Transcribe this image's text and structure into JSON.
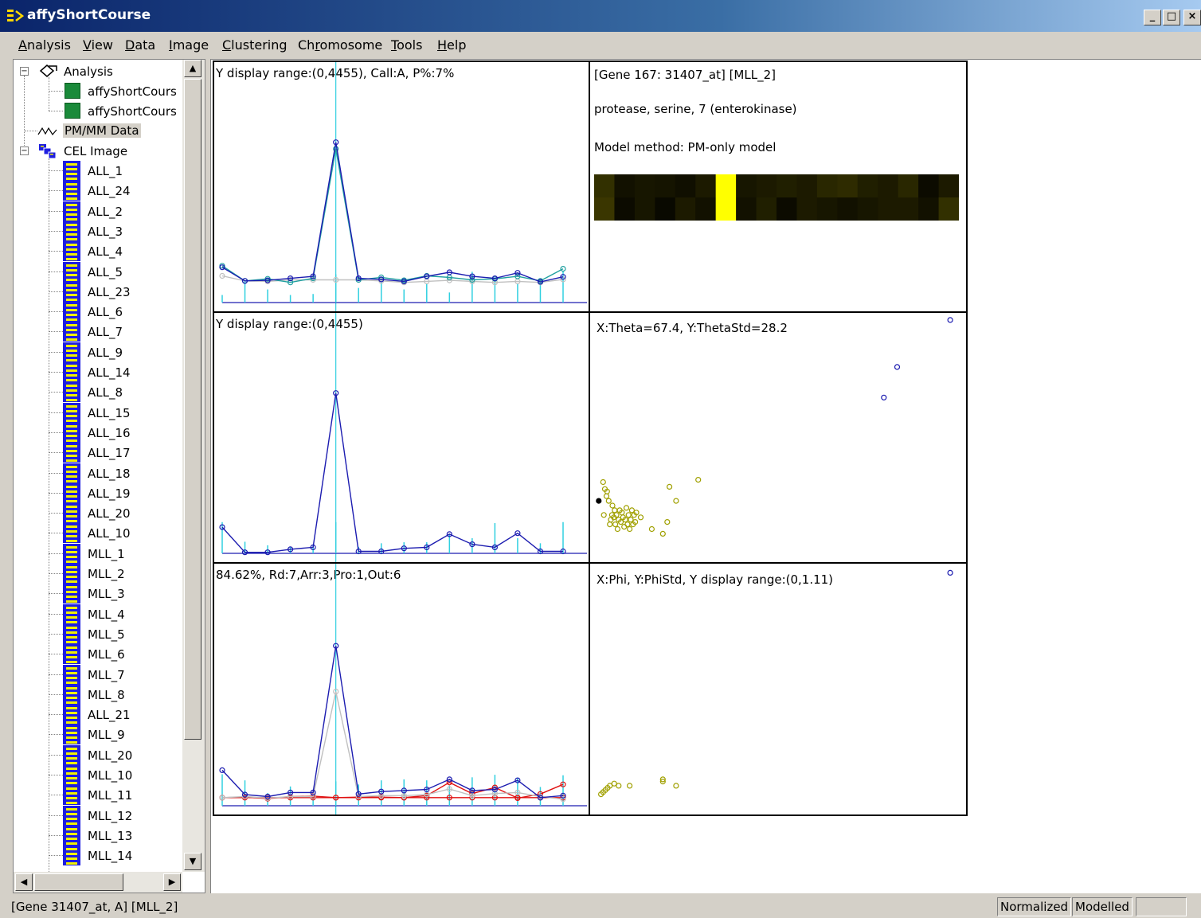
{
  "window": {
    "title": "affyShortCourse",
    "minimize": "_",
    "maximize": "□",
    "close": "×"
  },
  "menu": [
    {
      "key": "A",
      "rest": "nalysis"
    },
    {
      "key": "V",
      "rest": "iew"
    },
    {
      "key": "D",
      "rest": "ata"
    },
    {
      "key": "I",
      "rest": "mage"
    },
    {
      "key": "C",
      "rest": "lustering"
    },
    {
      "pre": "Ch",
      "key": "r",
      "rest": "omosome"
    },
    {
      "key": "T",
      "rest": "ools"
    },
    {
      "key": "H",
      "rest": "elp"
    }
  ],
  "tree": {
    "analysis_label": "Analysis",
    "analysis_children": [
      "affyShortCours",
      "affyShortCours"
    ],
    "pmmm_label": "PM/MM Data",
    "cel_label": "CEL Image",
    "cel_children": [
      "ALL_1",
      "ALL_24",
      "ALL_2",
      "ALL_3",
      "ALL_4",
      "ALL_5",
      "ALL_23",
      "ALL_6",
      "ALL_7",
      "ALL_9",
      "ALL_14",
      "ALL_8",
      "ALL_15",
      "ALL_16",
      "ALL_17",
      "ALL_18",
      "ALL_19",
      "ALL_20",
      "ALL_10",
      "MLL_1",
      "MLL_2",
      "MLL_3",
      "MLL_4",
      "MLL_5",
      "MLL_6",
      "MLL_7",
      "MLL_8",
      "ALL_21",
      "MLL_9",
      "MLL_20",
      "MLL_10",
      "MLL_11",
      "MLL_12",
      "MLL_13",
      "MLL_14"
    ]
  },
  "panels": {
    "pmmm_top": {
      "label": "Y display range:(0,4455), Call:A, P%:7%"
    },
    "info": {
      "gene": "[Gene 167: 31407_at] [MLL_2]",
      "desc": "protease, serine, 7 (enterokinase)",
      "model": "Model method: PM-only model"
    },
    "pmmm_mid": {
      "label": "Y display range:(0,4455)"
    },
    "theta": {
      "label": "X:Theta=67.4, Y:ThetaStd=28.2"
    },
    "pmmm_bot": {
      "label": "84.62%, Rd:7,Arr:3,Pro:1,Out:6"
    },
    "phi": {
      "label": "X:Phi, Y:PhiStd, Y display range:(0,1.11)"
    }
  },
  "status": {
    "text": "[Gene 31407_at, A] [MLL_2]",
    "normalized": "Normalized",
    "modelled": "Modelled"
  },
  "colors": {
    "title_bar": "#0a246a",
    "series_blue": "#1c1cb0",
    "series_teal": "#20a0a0",
    "series_gray": "#c0c0c0",
    "series_red": "#e01010",
    "cursor_cyan": "#30d0e0",
    "scatter_olive": "#a0a000",
    "heatmap_highlight": "#ffff00"
  },
  "heatmap": {
    "row1": [
      0.22,
      0.08,
      0.1,
      0.09,
      0.07,
      0.12,
      1.0,
      0.1,
      0.12,
      0.14,
      0.12,
      0.18,
      0.2,
      0.14,
      0.12,
      0.18,
      0.05,
      0.12
    ],
    "row2": [
      0.25,
      0.05,
      0.1,
      0.04,
      0.12,
      0.08,
      1.0,
      0.08,
      0.14,
      0.05,
      0.12,
      0.1,
      0.08,
      0.1,
      0.12,
      0.12,
      0.08,
      0.22
    ]
  },
  "chart_data": [
    {
      "type": "line",
      "title": "Y display range:(0,4455), Call:A, P%:7%",
      "x": [
        1,
        2,
        3,
        4,
        5,
        6,
        7,
        8,
        9,
        10,
        11,
        12,
        13,
        14,
        15,
        16
      ],
      "ylim": [
        0,
        4455
      ],
      "series": [
        {
          "values": [
            700,
            430,
            440,
            480,
            520,
            3180,
            480,
            460,
            420,
            520,
            600,
            520,
            480,
            590,
            410,
            510
          ]
        },
        {
          "values": [
            730,
            430,
            470,
            400,
            480,
            3050,
            450,
            500,
            440,
            530,
            500,
            450,
            470,
            520,
            430,
            670
          ]
        },
        {
          "values": [
            530,
            430,
            420,
            450,
            450,
            450,
            450,
            430,
            400,
            420,
            440,
            420,
            400,
            420,
            400,
            460
          ]
        }
      ],
      "bars": [
        150,
        420,
        260,
        150,
        170,
        560,
        290,
        400,
        260,
        380,
        200,
        610,
        500,
        380,
        410,
        620
      ],
      "cursor_x": 6
    },
    {
      "type": "line",
      "title": "Y display range:(0,4455)",
      "x": [
        1,
        2,
        3,
        4,
        5,
        6,
        7,
        8,
        9,
        10,
        11,
        12,
        13,
        14,
        15,
        16
      ],
      "ylim": [
        0,
        4455
      ],
      "series": [
        {
          "values": [
            520,
            20,
            20,
            80,
            120,
            3180,
            40,
            40,
            100,
            120,
            380,
            180,
            120,
            400,
            40,
            40
          ]
        }
      ],
      "bars": [
        620,
        230,
        160,
        130,
        160,
        620,
        130,
        200,
        220,
        220,
        380,
        300,
        600,
        300,
        200,
        620
      ],
      "cursor_x": 6
    },
    {
      "type": "scatter",
      "title": "X:Theta=67.4, Y:ThetaStd=28.2",
      "series": [
        {
          "name": "current",
          "points": [
            [
              0.1,
              0.22
            ]
          ]
        },
        {
          "name": "normal",
          "points": [
            [
              0.3,
              0.3
            ],
            [
              0.38,
              0.27
            ],
            [
              0.33,
              0.16
            ],
            [
              0.45,
              0.24
            ],
            [
              0.48,
              0.26
            ],
            [
              0.55,
              0.22
            ],
            [
              0.6,
              0.12
            ],
            [
              0.65,
              0.14
            ],
            [
              0.7,
              0.16
            ],
            [
              0.72,
              0.2
            ],
            [
              0.78,
              0.15
            ],
            [
              0.82,
              0.18
            ],
            [
              0.85,
              0.12
            ],
            [
              0.9,
              0.16
            ],
            [
              0.95,
              0.1
            ],
            [
              1.0,
              0.14
            ],
            [
              1.05,
              0.18
            ],
            [
              1.1,
              0.13
            ],
            [
              1.15,
              0.17
            ],
            [
              1.2,
              0.15
            ],
            [
              1.25,
              0.11
            ],
            [
              1.3,
              0.14
            ],
            [
              1.35,
              0.19
            ],
            [
              1.4,
              0.12
            ],
            [
              1.45,
              0.16
            ],
            [
              1.5,
              0.1
            ],
            [
              1.55,
              0.14
            ],
            [
              1.6,
              0.18
            ],
            [
              1.65,
              0.12
            ],
            [
              1.7,
              0.16
            ],
            [
              1.75,
              0.13
            ],
            [
              1.8,
              0.17
            ],
            [
              2.0,
              0.15
            ],
            [
              2.5,
              0.1
            ],
            [
              3.0,
              0.08
            ],
            [
              3.2,
              0.13
            ],
            [
              3.3,
              0.28
            ],
            [
              3.6,
              0.22
            ],
            [
              4.6,
              0.31
            ]
          ]
        },
        {
          "name": "outlier",
          "points": [
            [
              13.0,
              0.66
            ],
            [
              13.6,
              0.79
            ],
            [
              16.0,
              0.99
            ]
          ]
        }
      ],
      "xlim": [
        0,
        16.5
      ],
      "ylim": [
        0,
        1
      ]
    },
    {
      "type": "scatter",
      "title": "X:Phi, Y:PhiStd, Y display range:(0,1.11)",
      "series": [
        {
          "name": "normal",
          "points": [
            [
              0.2,
              0.05
            ],
            [
              0.3,
              0.06
            ],
            [
              0.4,
              0.07
            ],
            [
              0.5,
              0.08
            ],
            [
              0.6,
              0.09
            ],
            [
              0.8,
              0.1
            ],
            [
              1.0,
              0.09
            ],
            [
              1.5,
              0.09
            ],
            [
              3.0,
              0.11
            ],
            [
              3.0,
              0.12
            ],
            [
              3.6,
              0.09
            ]
          ]
        },
        {
          "name": "outlier",
          "points": [
            [
              16.0,
              1.09
            ]
          ]
        }
      ],
      "xlim": [
        0,
        16.5
      ],
      "ylim": [
        0,
        1.11
      ]
    },
    {
      "type": "line",
      "title": "84.62%, Rd:7,Arr:3,Pro:1,Out:6",
      "x": [
        1,
        2,
        3,
        4,
        5,
        6,
        7,
        8,
        9,
        10,
        11,
        12,
        13,
        14,
        15,
        16
      ],
      "ylim": [
        0,
        4455
      ],
      "series": [
        {
          "values": [
            700,
            220,
            180,
            260,
            260,
            3150,
            230,
            280,
            300,
            320,
            520,
            300,
            320,
            500,
            160,
            200
          ]
        },
        {
          "values": [
            160,
            180,
            150,
            180,
            180,
            2250,
            180,
            200,
            200,
            220,
            330,
            200,
            240,
            260,
            180,
            130
          ]
        },
        {
          "values": [
            160,
            160,
            160,
            160,
            160,
            160,
            160,
            160,
            160,
            160,
            160,
            160,
            160,
            160,
            160,
            160
          ]
        },
        {
          "values": [
            160,
            170,
            140,
            180,
            190,
            160,
            170,
            170,
            160,
            200,
            460,
            240,
            360,
            150,
            230,
            420
          ]
        }
      ],
      "bars": [
        620,
        500,
        250,
        380,
        200,
        480,
        420,
        500,
        520,
        500,
        400,
        560,
        610,
        550,
        370,
        600
      ],
      "cursor_x": 6
    }
  ]
}
